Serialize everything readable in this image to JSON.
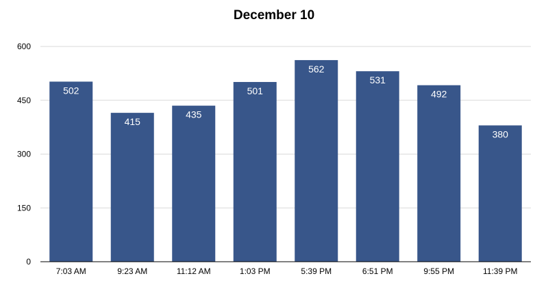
{
  "chart_data": {
    "type": "bar",
    "title": "December 10",
    "categories": [
      "7:03 AM",
      "9:23 AM",
      "11:12 AM",
      "1:03 PM",
      "5:39 PM",
      "6:51 PM",
      "9:55 PM",
      "11:39 PM"
    ],
    "values": [
      502,
      415,
      435,
      501,
      562,
      531,
      492,
      380
    ],
    "xlabel": "",
    "ylabel": "",
    "ylim": [
      0,
      600
    ],
    "yticks": [
      0,
      150,
      300,
      450,
      600
    ],
    "grid": true,
    "legend": "none",
    "bar_color": "#38568a",
    "grid_color": "#d9d9d9",
    "axis_color": "#000000"
  }
}
